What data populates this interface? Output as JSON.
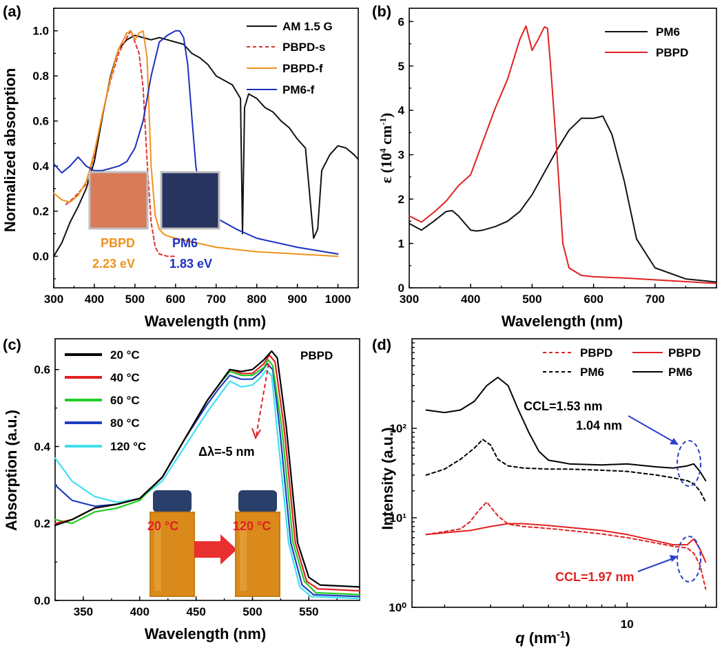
{
  "chart_data": [
    {
      "panel": "(a)",
      "type": "line",
      "xlabel": "Wavelength (nm)",
      "ylabel": "Normalized absorption",
      "xlim": [
        300,
        1050
      ],
      "ylim": [
        -0.14,
        1.1
      ],
      "xticks": [
        "300",
        "400",
        "500",
        "600",
        "700",
        "800",
        "900",
        "1000"
      ],
      "yticks": [
        "0.0",
        "0.2",
        "0.4",
        "0.6",
        "0.8",
        "1.0"
      ],
      "legend_position": "top-right",
      "series": [
        {
          "name": "AM 1.5 G",
          "color": "#111111",
          "dash": "solid",
          "x": [
            300,
            320,
            340,
            360,
            380,
            400,
            420,
            440,
            460,
            480,
            500,
            520,
            540,
            560,
            580,
            600,
            620,
            640,
            660,
            680,
            700,
            720,
            740,
            760,
            765,
            770,
            780,
            800,
            820,
            840,
            860,
            880,
            900,
            920,
            940,
            950,
            960,
            980,
            1000,
            1020,
            1040,
            1050
          ],
          "y": [
            0.0,
            0.06,
            0.15,
            0.22,
            0.3,
            0.42,
            0.62,
            0.8,
            0.92,
            0.96,
            0.98,
            0.97,
            0.96,
            0.97,
            0.96,
            0.95,
            0.94,
            0.9,
            0.88,
            0.85,
            0.8,
            0.78,
            0.76,
            0.7,
            0.1,
            0.66,
            0.72,
            0.7,
            0.66,
            0.64,
            0.6,
            0.57,
            0.52,
            0.48,
            0.08,
            0.12,
            0.38,
            0.45,
            0.49,
            0.48,
            0.45,
            0.43
          ]
        },
        {
          "name": "PBPD-s",
          "color": "#e03030",
          "dash": "dashed",
          "x": [
            330,
            350,
            380,
            400,
            420,
            440,
            460,
            480,
            490,
            500,
            510,
            520,
            530,
            540,
            550,
            560,
            580,
            600
          ],
          "y": [
            0.23,
            0.26,
            0.32,
            0.45,
            0.63,
            0.78,
            0.9,
            0.97,
            1.0,
            0.95,
            0.9,
            0.75,
            0.42,
            0.15,
            0.04,
            0.01,
            0.0,
            0.0
          ]
        },
        {
          "name": "PBPD-f",
          "color": "#f0921c",
          "dash": "solid",
          "x": [
            300,
            320,
            340,
            360,
            380,
            400,
            420,
            440,
            460,
            480,
            490,
            500,
            510,
            520,
            530,
            540,
            550,
            560,
            570,
            580,
            600,
            650,
            700,
            800,
            900,
            1000
          ],
          "y": [
            0.28,
            0.25,
            0.24,
            0.27,
            0.33,
            0.46,
            0.63,
            0.79,
            0.92,
            0.99,
            1.0,
            0.96,
            0.99,
            1.0,
            0.88,
            0.4,
            0.18,
            0.12,
            0.1,
            0.09,
            0.08,
            0.06,
            0.04,
            0.02,
            0.01,
            0.0
          ]
        },
        {
          "name": "PM6-f",
          "color": "#1c2fbf",
          "dash": "solid",
          "x": [
            300,
            320,
            340,
            360,
            370,
            380,
            400,
            420,
            440,
            460,
            480,
            500,
            520,
            540,
            560,
            580,
            600,
            610,
            620,
            630,
            640,
            650,
            660,
            680,
            700,
            750,
            800,
            900,
            1000
          ],
          "y": [
            0.41,
            0.37,
            0.4,
            0.44,
            0.42,
            0.4,
            0.38,
            0.38,
            0.39,
            0.4,
            0.42,
            0.48,
            0.6,
            0.8,
            0.95,
            0.98,
            1.0,
            1.0,
            0.97,
            0.85,
            0.62,
            0.4,
            0.28,
            0.2,
            0.17,
            0.12,
            0.08,
            0.04,
            0.01
          ]
        }
      ],
      "annotations": [
        "PBPD",
        "2.23 eV",
        "PM6",
        "1.83 eV"
      ]
    },
    {
      "panel": "(b)",
      "type": "line",
      "xlabel": "Wavelength (nm)",
      "ylabel": "ε (10⁴ cm⁻¹)",
      "xlim": [
        300,
        800
      ],
      "ylim": [
        0,
        6.3
      ],
      "xticks": [
        "300",
        "400",
        "500",
        "600",
        "700"
      ],
      "yticks": [
        "0",
        "1",
        "2",
        "3",
        "4",
        "5",
        "6"
      ],
      "legend_position": "top-right",
      "series": [
        {
          "name": "PM6",
          "color": "#111111",
          "x": [
            300,
            320,
            340,
            360,
            370,
            380,
            400,
            410,
            420,
            440,
            460,
            480,
            500,
            520,
            540,
            560,
            580,
            600,
            615,
            630,
            650,
            670,
            700,
            750,
            800
          ],
          "y": [
            1.45,
            1.3,
            1.5,
            1.72,
            1.74,
            1.62,
            1.3,
            1.28,
            1.3,
            1.38,
            1.5,
            1.72,
            2.1,
            2.6,
            3.1,
            3.55,
            3.82,
            3.82,
            3.87,
            3.45,
            2.4,
            1.1,
            0.45,
            0.2,
            0.13
          ]
        },
        {
          "name": "PBPD",
          "color": "#e02020",
          "x": [
            300,
            320,
            340,
            360,
            380,
            400,
            420,
            440,
            460,
            480,
            490,
            500,
            510,
            520,
            525,
            530,
            540,
            550,
            560,
            580,
            600,
            650,
            700,
            800
          ],
          "y": [
            1.62,
            1.48,
            1.7,
            1.95,
            2.3,
            2.55,
            3.3,
            4.05,
            4.7,
            5.6,
            5.9,
            5.35,
            5.6,
            5.88,
            5.85,
            5.0,
            3.1,
            1.0,
            0.45,
            0.28,
            0.25,
            0.22,
            0.18,
            0.1
          ]
        }
      ]
    },
    {
      "panel": "(c)",
      "type": "line",
      "title": "PBPD",
      "xlabel": "Wavelength (nm)",
      "ylabel": "Absorption (a.u.)",
      "xlim": [
        325,
        595
      ],
      "ylim": [
        0,
        0.68
      ],
      "xticks": [
        "350",
        "400",
        "450",
        "500",
        "550"
      ],
      "yticks": [
        "0.0",
        "0.2",
        "0.4",
        "0.6"
      ],
      "legend_position": "top-left",
      "series": [
        {
          "name": "20 °C",
          "color": "#000000",
          "x": [
            325,
            340,
            360,
            380,
            400,
            420,
            440,
            460,
            470,
            480,
            490,
            500,
            510,
            517,
            522,
            530,
            540,
            550,
            560,
            595
          ],
          "y": [
            0.195,
            0.21,
            0.24,
            0.25,
            0.265,
            0.32,
            0.42,
            0.52,
            0.56,
            0.6,
            0.595,
            0.6,
            0.625,
            0.648,
            0.63,
            0.45,
            0.15,
            0.06,
            0.04,
            0.035
          ]
        },
        {
          "name": "40 °C",
          "color": "#e02020",
          "x": [
            325,
            340,
            360,
            380,
            400,
            420,
            440,
            460,
            470,
            480,
            490,
            500,
            510,
            515,
            520,
            528,
            538,
            548,
            558,
            595
          ],
          "y": [
            0.2,
            0.21,
            0.24,
            0.25,
            0.265,
            0.32,
            0.42,
            0.52,
            0.56,
            0.6,
            0.59,
            0.59,
            0.615,
            0.638,
            0.62,
            0.45,
            0.15,
            0.05,
            0.03,
            0.025
          ]
        },
        {
          "name": "60 °C",
          "color": "#22cc22",
          "x": [
            325,
            340,
            360,
            380,
            400,
            420,
            440,
            460,
            470,
            480,
            490,
            500,
            510,
            514,
            518,
            526,
            536,
            546,
            556,
            595
          ],
          "y": [
            0.21,
            0.2,
            0.23,
            0.24,
            0.26,
            0.32,
            0.42,
            0.52,
            0.56,
            0.595,
            0.585,
            0.585,
            0.605,
            0.625,
            0.61,
            0.45,
            0.15,
            0.05,
            0.02,
            0.015
          ]
        },
        {
          "name": "80 °C",
          "color": "#1f3fbf",
          "x": [
            325,
            340,
            360,
            380,
            400,
            420,
            440,
            460,
            470,
            480,
            490,
            500,
            508,
            513,
            518,
            524,
            534,
            544,
            554,
            595
          ],
          "y": [
            0.3,
            0.26,
            0.245,
            0.25,
            0.265,
            0.32,
            0.42,
            0.51,
            0.55,
            0.585,
            0.575,
            0.575,
            0.595,
            0.615,
            0.6,
            0.45,
            0.15,
            0.04,
            0.015,
            0.01
          ]
        },
        {
          "name": "120 °C",
          "color": "#3fe0f0",
          "x": [
            325,
            340,
            360,
            380,
            400,
            420,
            440,
            460,
            470,
            480,
            490,
            500,
            507,
            512,
            517,
            522,
            532,
            542,
            552,
            595
          ],
          "y": [
            0.37,
            0.31,
            0.27,
            0.255,
            0.265,
            0.31,
            0.4,
            0.49,
            0.53,
            0.57,
            0.555,
            0.56,
            0.578,
            0.598,
            0.585,
            0.44,
            0.15,
            0.035,
            0.01,
            0.005
          ]
        }
      ],
      "annotations": [
        "Δλ=-5 nm",
        "20 °C",
        "120 °C"
      ]
    },
    {
      "panel": "(d)",
      "type": "line",
      "xlabel": "q (nm⁻¹)",
      "ylabel": "Intensity (a.u.)",
      "xscale": "log",
      "yscale": "log",
      "xlim": [
        1.5,
        22
      ],
      "ylim": [
        1,
        1000
      ],
      "xticks": [
        "10"
      ],
      "yticks": [
        "10⁰",
        "10¹",
        "10²"
      ],
      "legend_position": "top-right",
      "series": [
        {
          "name": "PBPD",
          "color": "#e02020",
          "dash": "dashed",
          "x": [
            1.7,
            2.0,
            2.3,
            2.5,
            2.7,
            2.9,
            3.2,
            3.5,
            4,
            5,
            6,
            8,
            10,
            13,
            15,
            17,
            18,
            19,
            20
          ],
          "y": [
            6.5,
            7.0,
            7.5,
            9.0,
            12.0,
            15.0,
            10.5,
            8.5,
            8.0,
            7.6,
            7.2,
            6.6,
            6.0,
            5.2,
            4.8,
            4.6,
            4.0,
            3.0,
            1.6
          ]
        },
        {
          "name": "PBPD",
          "color": "#e02020",
          "dash": "solid",
          "x": [
            1.7,
            2.0,
            2.5,
            3.0,
            3.5,
            4,
            5,
            6,
            8,
            10,
            13,
            15,
            17,
            18,
            19,
            20
          ],
          "y": [
            6.5,
            6.8,
            7.2,
            8.0,
            8.6,
            8.6,
            8.2,
            7.8,
            7.2,
            6.5,
            5.5,
            5.0,
            5.0,
            5.8,
            4.5,
            3.2
          ]
        },
        {
          "name": "PM6",
          "color": "#000000",
          "dash": "dashed",
          "x": [
            1.7,
            2.0,
            2.3,
            2.6,
            2.8,
            3.0,
            3.2,
            3.5,
            4,
            5,
            6,
            8,
            10,
            13,
            15,
            17,
            18,
            19,
            20
          ],
          "y": [
            30,
            35,
            45,
            60,
            75,
            65,
            45,
            38,
            36,
            35,
            35,
            34,
            33,
            30,
            28,
            26,
            24,
            20,
            15
          ]
        },
        {
          "name": "PM6",
          "color": "#000000",
          "dash": "solid",
          "x": [
            1.7,
            2.0,
            2.3,
            2.6,
            2.9,
            3.2,
            3.5,
            3.8,
            4.2,
            4.6,
            5.0,
            5.5,
            6,
            8,
            10,
            13,
            15,
            17,
            18,
            19,
            20
          ],
          "y": [
            160,
            150,
            160,
            200,
            300,
            370,
            300,
            170,
            90,
            55,
            44,
            42,
            40,
            39,
            40,
            37,
            36,
            38,
            40,
            33,
            26
          ]
        }
      ],
      "annotations": [
        "CCL=1.53 nm",
        "1.04 nm",
        "CCL=1.97 nm"
      ]
    }
  ],
  "panels": {
    "a": {
      "label": "(a)",
      "legend": [
        "AM 1.5 G",
        "PBPD-s",
        "PBPD-f",
        "PM6-f"
      ],
      "swatch1_label": "PBPD",
      "swatch1_value": "2.23 eV",
      "swatch2_label": "PM6",
      "swatch2_value": "1.83 eV",
      "xlabel": "Wavelength (nm)",
      "ylabel": "Normalized absorption"
    },
    "b": {
      "label": "(b)",
      "legend": [
        "PM6",
        "PBPD"
      ],
      "xlabel": "Wavelength (nm)",
      "ylabel_main": "ε (10",
      "ylabel_sup": "4",
      "ylabel_mid": " cm",
      "ylabel_sup2": "-1",
      "ylabel_end": ")"
    },
    "c": {
      "label": "(c)",
      "title": "PBPD",
      "legend": [
        "20 °C",
        "40 °C",
        "60 °C",
        "80 °C",
        "120 °C"
      ],
      "shift": "Δλ=-5 nm",
      "vial1": "20 °C",
      "vial2": "120 °C",
      "xlabel": "Wavelength (nm)",
      "ylabel": "Absorption (a.u.)"
    },
    "d": {
      "label": "(d)",
      "legend": [
        "PBPD",
        "PBPD",
        "PM6",
        "PM6"
      ],
      "ccl1": "CCL=1.53 nm",
      "ccl2": "1.04 nm",
      "ccl3": "CCL=1.97 nm",
      "xlabel_q": "q",
      "xlabel_rest": " (nm",
      "xlabel_sup": "-1",
      "xlabel_end": ")",
      "ylabel": "Intensity (a.u.)"
    }
  },
  "colors": {
    "pbpd_swatch": "#d97a58",
    "pm6_swatch": "#27345f",
    "annotation_orange": "#f0921c",
    "annotation_blue": "#1c2fbf",
    "annotation_red": "#e02020",
    "vial_liquid": "#d98a1a",
    "vial_cap": "#2a3f6a",
    "arrow_blue": "#2b3fc8"
  }
}
